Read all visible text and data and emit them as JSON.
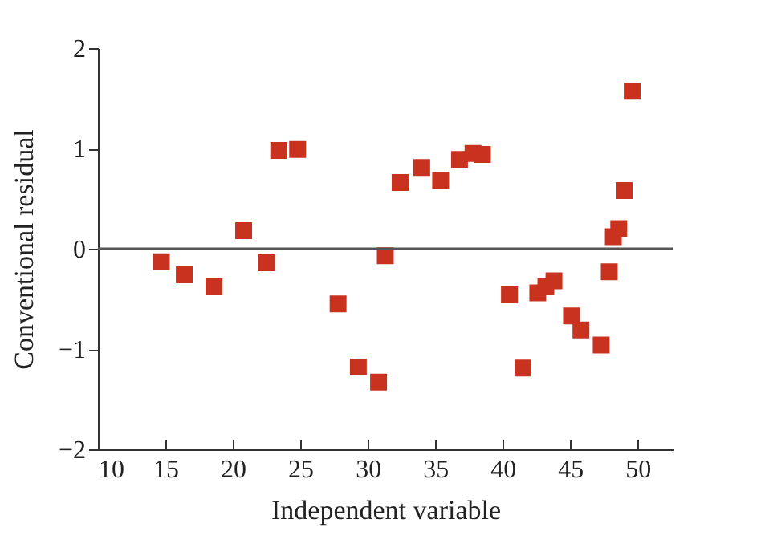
{
  "chart_data": {
    "type": "scatter",
    "xlabel": "Independent variable",
    "ylabel": "Conventional residual",
    "x": [
      14.7,
      16.4,
      18.6,
      20.8,
      22.5,
      23.4,
      24.8,
      27.8,
      29.3,
      30.8,
      31.3,
      32.4,
      34.0,
      35.4,
      36.8,
      37.8,
      38.5,
      40.5,
      41.5,
      42.6,
      43.2,
      43.8,
      45.1,
      45.8,
      47.3,
      47.9,
      48.2,
      48.6,
      49.0,
      49.6
    ],
    "series": [
      {
        "color": "#c8321e",
        "values": [
          -0.13,
          -0.26,
          -0.38,
          0.18,
          -0.14,
          0.98,
          0.99,
          -0.55,
          -1.18,
          -1.33,
          -0.07,
          0.66,
          0.81,
          0.68,
          0.89,
          0.95,
          0.94,
          -0.46,
          -1.19,
          -0.44,
          -0.38,
          -0.32,
          -0.67,
          -0.81,
          -0.96,
          -0.23,
          0.12,
          0.2,
          0.58,
          1.57
        ]
      }
    ],
    "xlim": [
      10,
      52.6
    ],
    "xticks": [
      10,
      15,
      20,
      25,
      30,
      35,
      40,
      45,
      50
    ],
    "ylim": [
      -2,
      2
    ],
    "yticks": [
      -2,
      -1,
      0,
      1,
      2
    ],
    "ref_lines": [
      {
        "axis": "y",
        "value": 0,
        "color": "#555555"
      }
    ],
    "marker": "square",
    "grid": false
  }
}
